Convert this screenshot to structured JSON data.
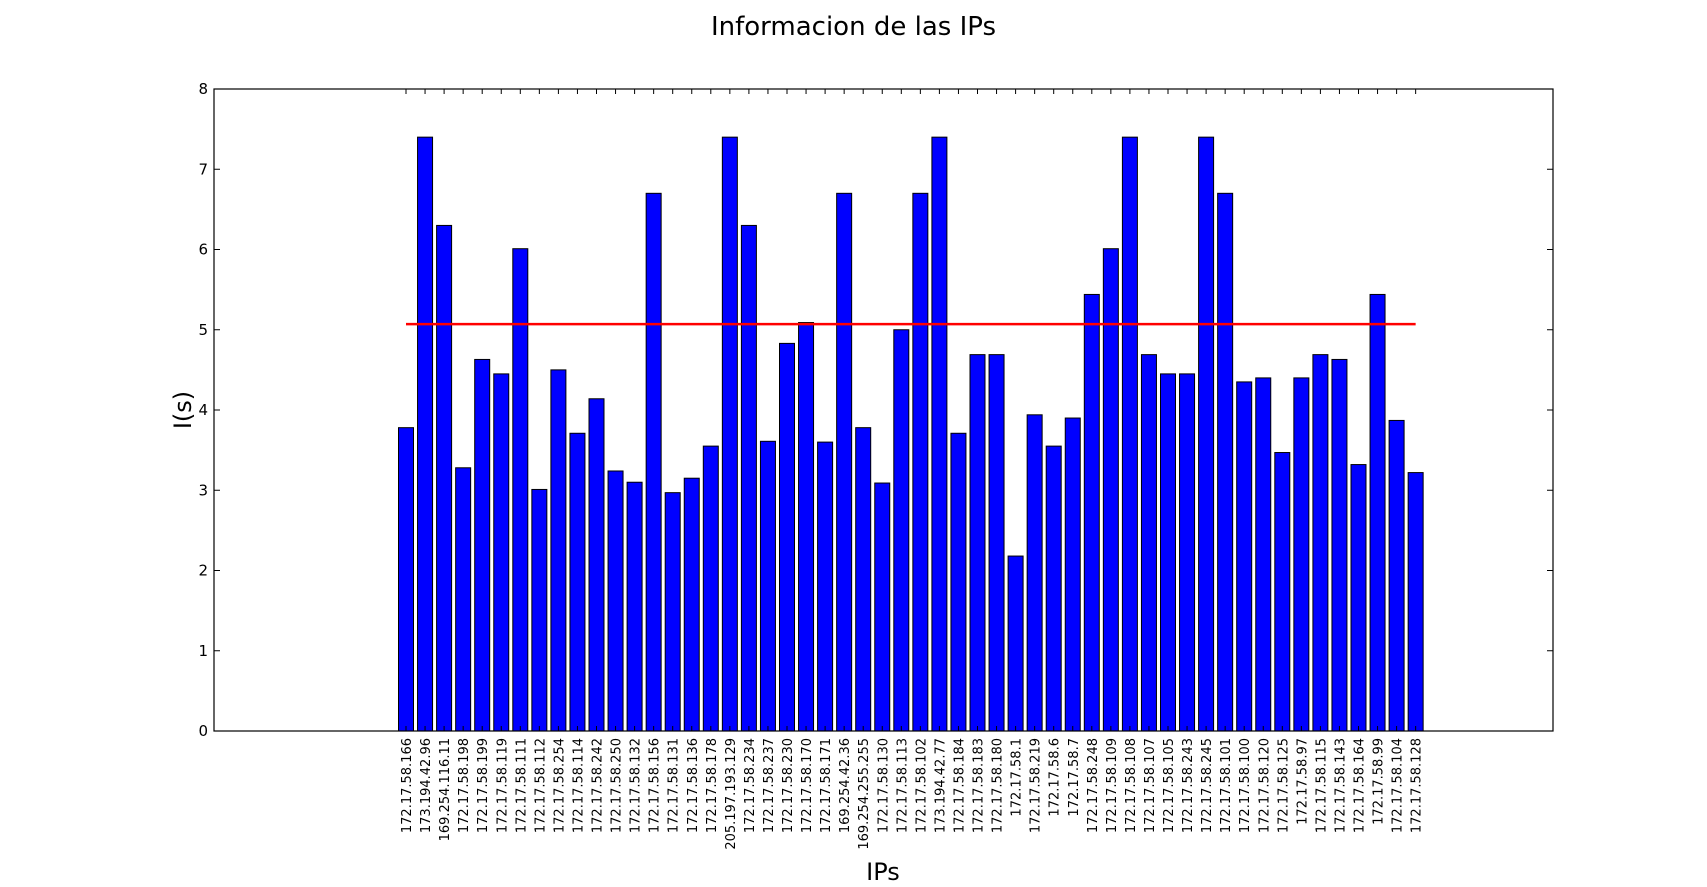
{
  "chart_data": {
    "type": "bar",
    "title": "Informacion de las IPs",
    "xlabel": "IPs",
    "ylabel": "I(s)",
    "ylim": [
      0,
      8
    ],
    "yticks": [
      0,
      1,
      2,
      3,
      4,
      5,
      6,
      7,
      8
    ],
    "grid": false,
    "bar_color": "#0000ff",
    "reference_line": {
      "value": 5.07,
      "color": "#ff0000"
    },
    "categories": [
      "172.17.58.166",
      "173.194.42.96",
      "169.254.116.11",
      "172.17.58.198",
      "172.17.58.199",
      "172.17.58.119",
      "172.17.58.111",
      "172.17.58.112",
      "172.17.58.254",
      "172.17.58.114",
      "172.17.58.242",
      "172.17.58.250",
      "172.17.58.132",
      "172.17.58.156",
      "172.17.58.131",
      "172.17.58.136",
      "172.17.58.178",
      "205.197.193.129",
      "172.17.58.234",
      "172.17.58.237",
      "172.17.58.230",
      "172.17.58.170",
      "172.17.58.171",
      "169.254.42.36",
      "169.254.255.255",
      "172.17.58.130",
      "172.17.58.113",
      "172.17.58.102",
      "173.194.42.77",
      "172.17.58.184",
      "172.17.58.183",
      "172.17.58.180",
      "172.17.58.1",
      "172.17.58.219",
      "172.17.58.6",
      "172.17.58.7",
      "172.17.58.248",
      "172.17.58.109",
      "172.17.58.108",
      "172.17.58.107",
      "172.17.58.105",
      "172.17.58.243",
      "172.17.58.245",
      "172.17.58.101",
      "172.17.58.100",
      "172.17.58.120",
      "172.17.58.125",
      "172.17.58.97",
      "172.17.58.115",
      "172.17.58.143",
      "172.17.58.164",
      "172.17.58.99",
      "172.17.58.104",
      "172.17.58.128"
    ],
    "values": [
      3.78,
      7.4,
      6.3,
      3.28,
      4.63,
      4.45,
      6.01,
      3.01,
      4.5,
      3.71,
      4.14,
      3.24,
      3.1,
      6.7,
      2.97,
      3.15,
      3.55,
      7.4,
      6.3,
      3.61,
      4.83,
      5.09,
      3.6,
      6.7,
      3.78,
      3.09,
      5.0,
      6.7,
      7.4,
      3.71,
      4.69,
      4.69,
      2.18,
      3.94,
      3.55,
      3.9,
      5.44,
      6.01,
      7.4,
      4.69,
      4.45,
      4.45,
      7.4,
      6.7,
      4.35,
      4.4,
      3.47,
      4.4,
      4.69,
      4.63,
      3.32,
      5.44,
      3.87,
      3.22
    ]
  }
}
